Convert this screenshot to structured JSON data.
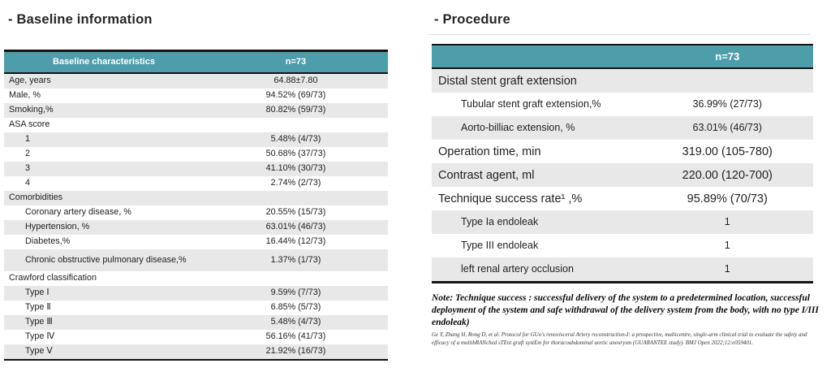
{
  "left": {
    "title": "- Baseline information",
    "table": {
      "header": [
        "Baseline characteristics",
        "n=73"
      ],
      "rows": [
        {
          "label": "Age, years",
          "value": "64.88±7.80"
        },
        {
          "label": "Male, %",
          "value": "94.52% (69/73)"
        },
        {
          "label": "Smoking,%",
          "value": "80.82% (59/73)"
        },
        {
          "label": "ASA score",
          "value": ""
        },
        {
          "label": "1",
          "value": "5.48% (4/73)",
          "indent": 1
        },
        {
          "label": "2",
          "value": "50.68% (37/73)",
          "indent": 1
        },
        {
          "label": "3",
          "value": "41.10% (30/73)",
          "indent": 1
        },
        {
          "label": "4",
          "value": "2.74% (2/73)",
          "indent": 1
        },
        {
          "label": "Comorbidities",
          "value": ""
        },
        {
          "label": "Coronary artery disease, %",
          "value": "20.55% (15/73)",
          "indent": 1
        },
        {
          "label": "Hypertension, %",
          "value": "63.01% (46/73)",
          "indent": 1
        },
        {
          "label": "Diabetes,%",
          "value": "16.44% (12/73)",
          "indent": 1
        },
        {
          "label": "Chronic obstructive pulmonary disease,%",
          "value": "1.37% (1/73)",
          "indent": 1,
          "tall": true
        },
        {
          "label": "Crawford classification",
          "value": ""
        },
        {
          "label": "Type Ⅰ",
          "value": "9.59% (7/73)",
          "indent": 1
        },
        {
          "label": "Type Ⅱ",
          "value": "6.85% (5/73)",
          "indent": 1
        },
        {
          "label": "Type Ⅲ",
          "value": "5.48% (4/73)",
          "indent": 1
        },
        {
          "label": "Type Ⅳ",
          "value": "56.16% (41/73)",
          "indent": 1
        },
        {
          "label": "Type Ⅴ",
          "value": "21.92% (16/73)",
          "indent": 1
        }
      ]
    }
  },
  "right": {
    "title": "- Procedure",
    "table": {
      "header": [
        "",
        "n=73"
      ],
      "rows": [
        {
          "label": "Distal stent graft extension",
          "value": ""
        },
        {
          "label": "Tubular stent graft extension,%",
          "value": "36.99% (27/73)",
          "indent": 1,
          "size": "sub"
        },
        {
          "label": "Aorto-billiac extension, %",
          "value": "63.01% (46/73)",
          "indent": 1,
          "size": "sub"
        },
        {
          "label": "Operation time, min",
          "value": "319.00 (105-780)"
        },
        {
          "label": "Contrast agent, ml",
          "value": "220.00 (120-700)"
        },
        {
          "label": "Technique success rate¹ ,%",
          "value": "95.89% (70/73)"
        },
        {
          "label": "Type Ia endoleak",
          "value": "1",
          "indent": 1,
          "size": "sub"
        },
        {
          "label": "Type III endoleak",
          "value": "1",
          "indent": 1,
          "size": "sub"
        },
        {
          "label": "left renal artery occlusion",
          "value": "1",
          "indent": 1,
          "size": "sub"
        }
      ]
    },
    "note": "Note: Technique success : successful delivery of the system to a predetermined location, successful deployment of the system and safe withdrawal of the delivery system from the body, with no type I/III endoleak)",
    "citation": "Ge Y, Zhang H, Rong D, et al. Protocol for GUo's renovisceral Artery reconstruction-I: a prospective, multicentre, single-arm clinical trial to evaluate the safety and efficacy of a multibRANched sTEnt graft systEm for thoracoabdominal aortic aneurysm (GUARANTEE study). BMJ Open 2022;12:e059401.",
    "colors": {
      "header_teal": "#4e9daa",
      "row_shade": "#e8e8e8"
    }
  }
}
